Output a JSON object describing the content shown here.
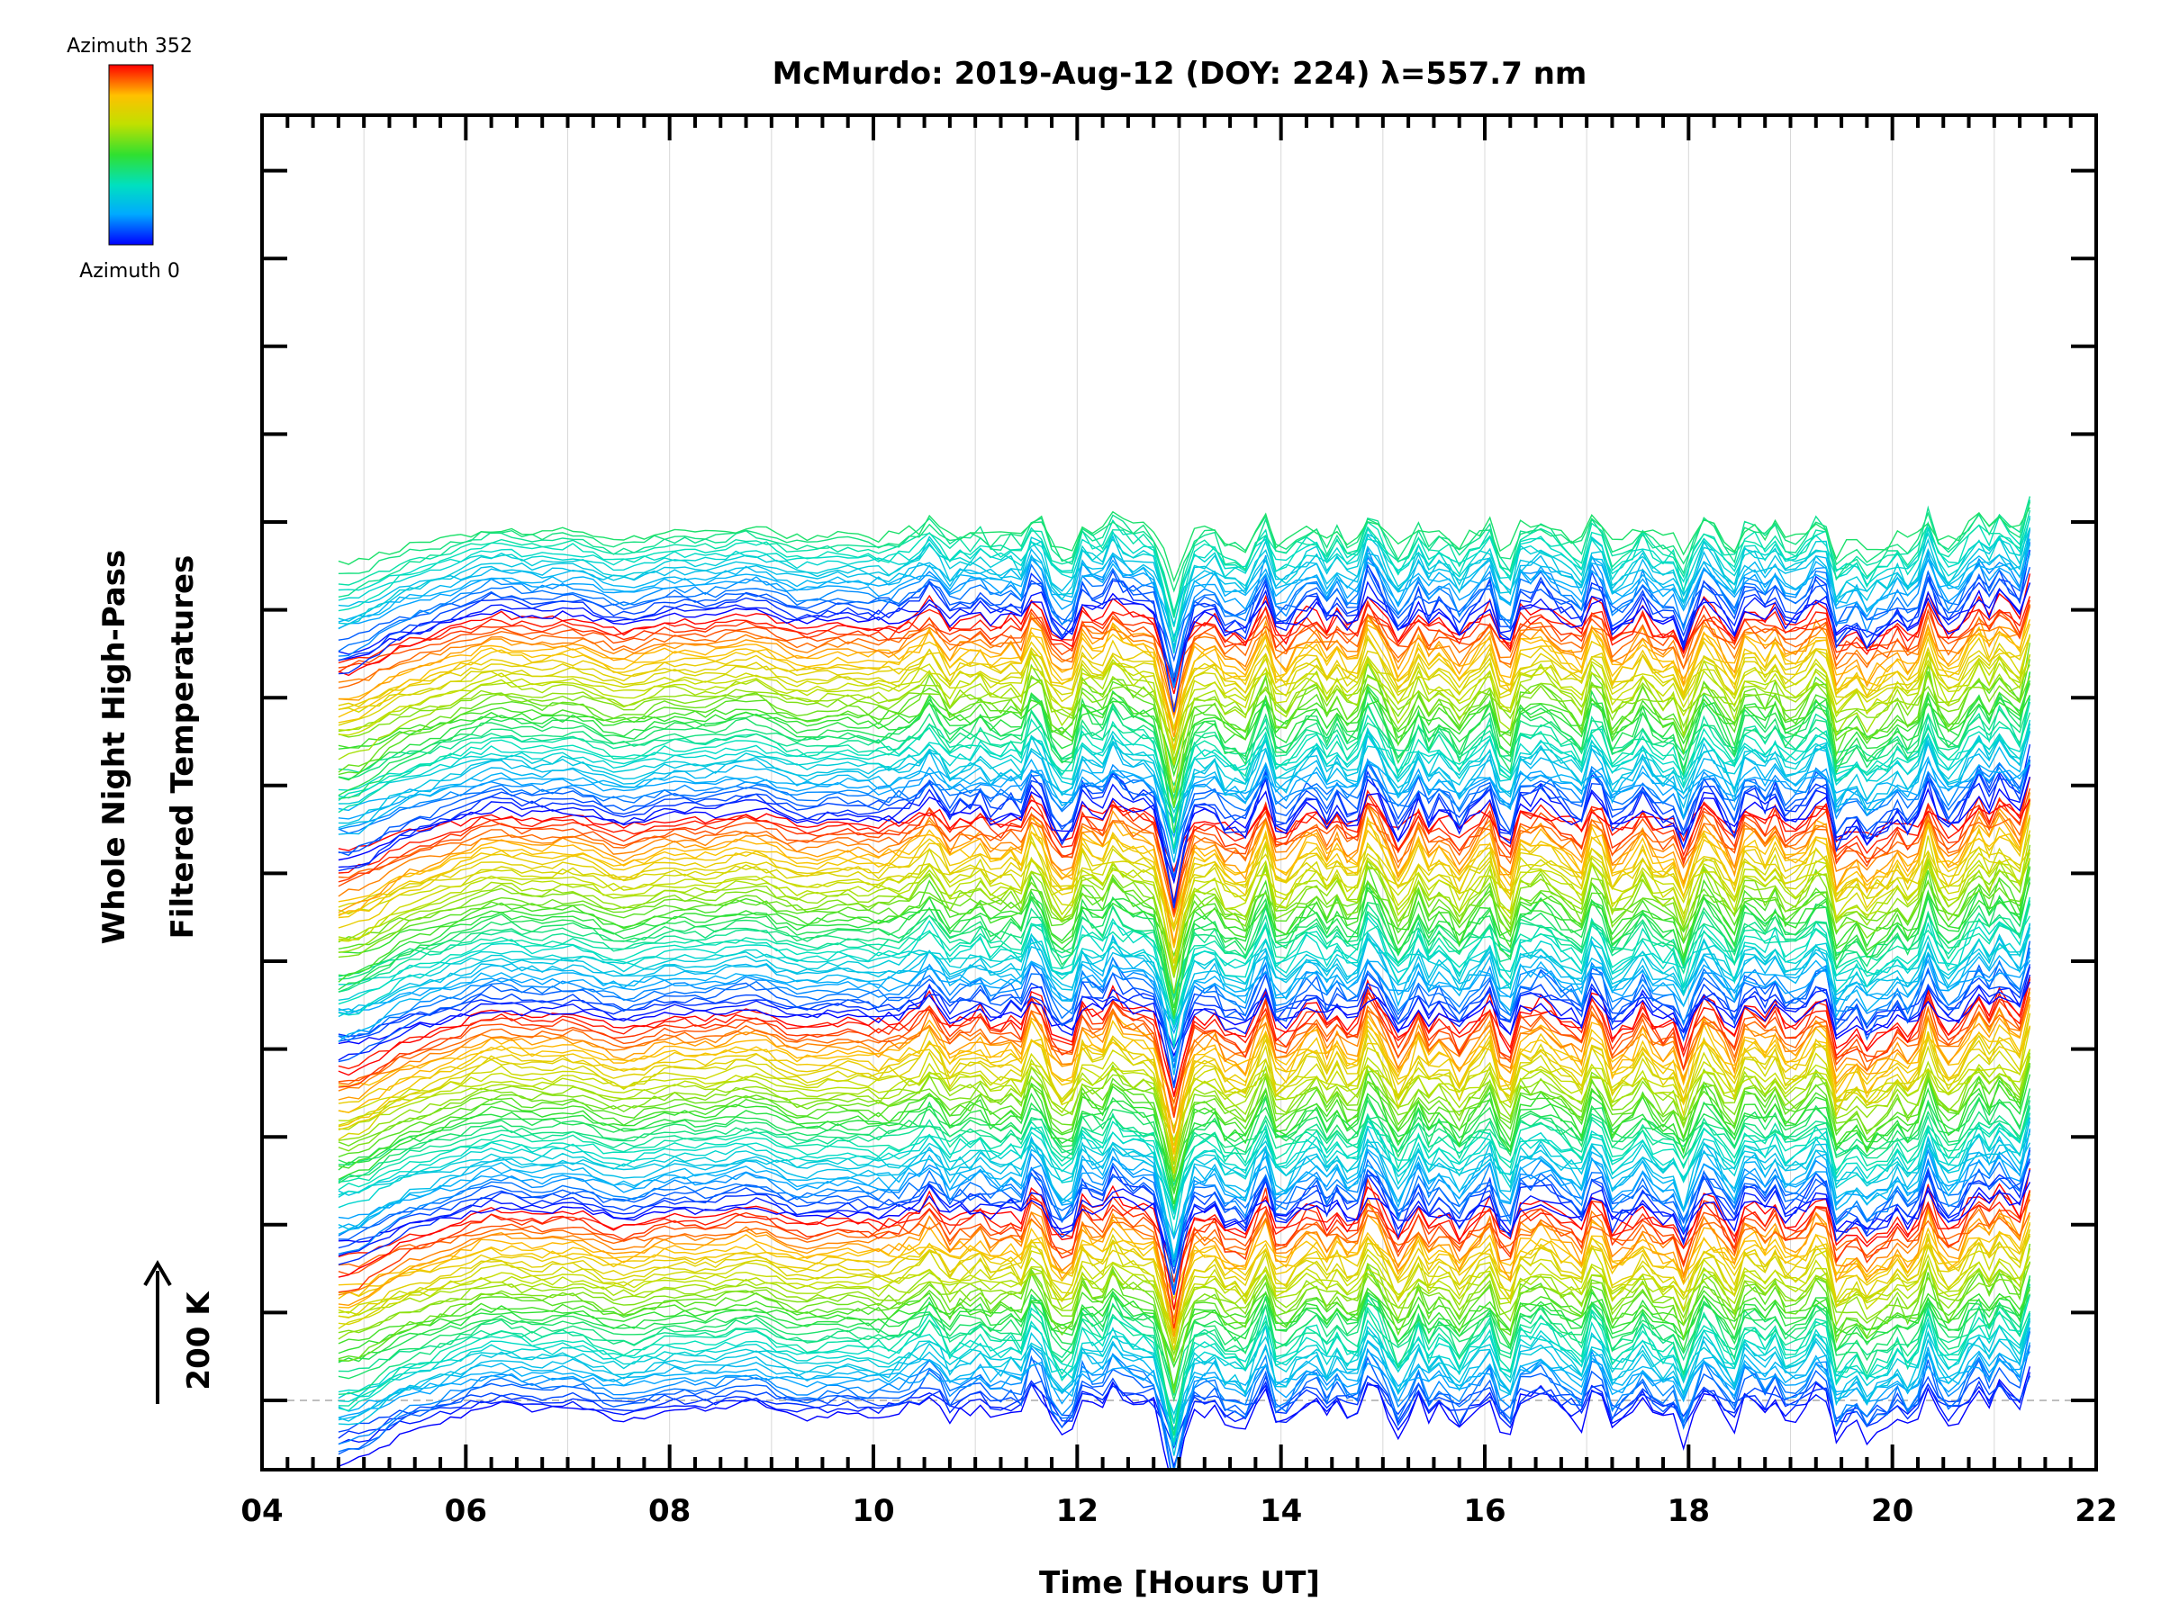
{
  "chart_data": {
    "type": "line",
    "title": "McMurdo: 2019-Aug-12 (DOY: 224) λ=557.7 nm",
    "xlabel": "Time [Hours UT]",
    "ylabel_line1": "Whole Night High-Pass",
    "ylabel_line2": "Filtered Temperatures",
    "xlim": [
      4,
      22
    ],
    "x_ticks": [
      "04",
      "06",
      "08",
      "10",
      "12",
      "14",
      "16",
      "18",
      "20",
      "22"
    ],
    "x_start": 4.75,
    "x_end": 21.4,
    "scale_bar": {
      "label": "200 K",
      "arrow": "up"
    },
    "colorbar": {
      "top_label": "Azimuth 352",
      "bottom_label": "Azimuth 0",
      "colormap": [
        "#0000ff",
        "#00aaff",
        "#00e0c0",
        "#30e030",
        "#c0e000",
        "#ffc000",
        "#ff0000"
      ]
    },
    "series_count": 200,
    "azimuth_step_deg": 8,
    "azimuths_per_cycle": 45,
    "grid": "vertical every 1 hour",
    "baseline": "dashed horizontal at lowest offset",
    "series_note": "stacked high-pass filtered temperature traces, each offset vertically, colored by azimuth 0-352"
  }
}
